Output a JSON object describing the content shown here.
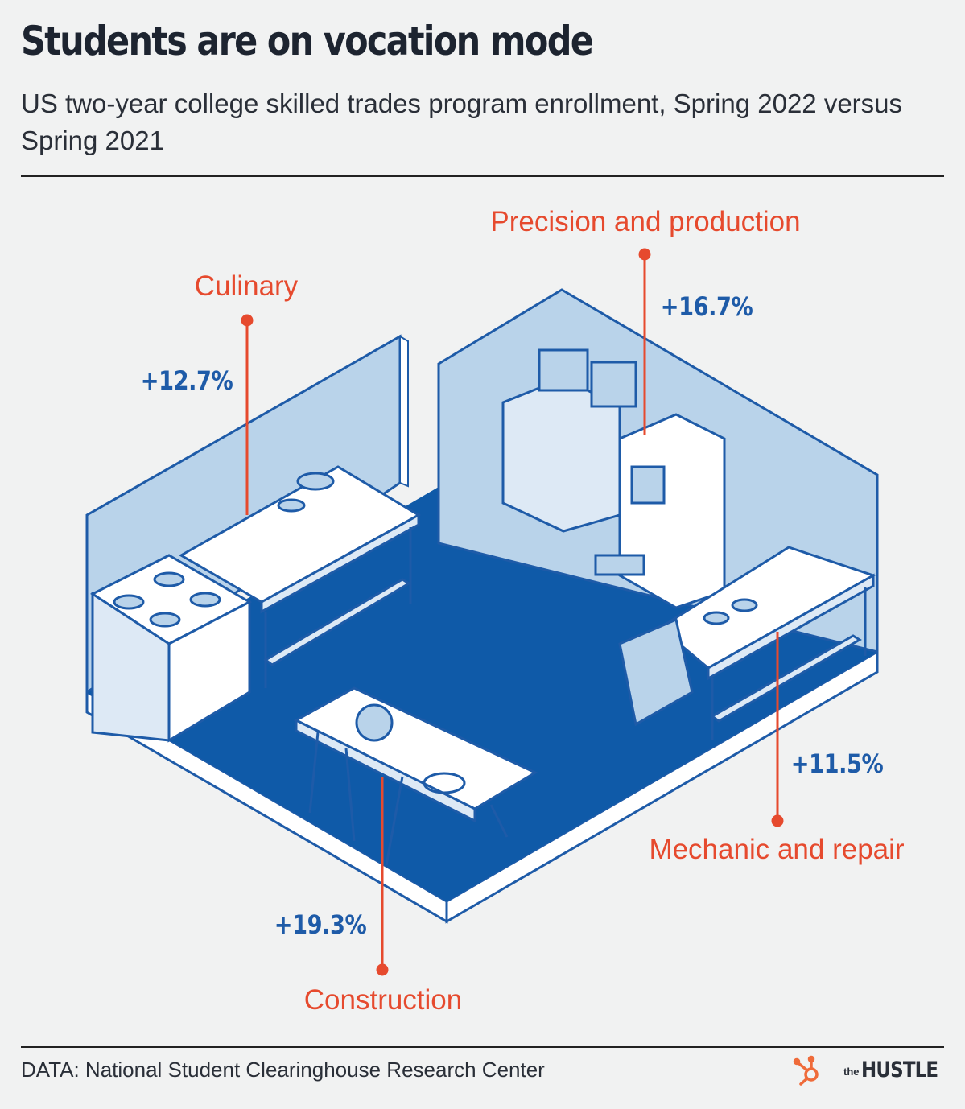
{
  "header": {
    "title": "Students are on vocation mode",
    "subtitle": "US two-year college skilled trades program enrollment, Spring 2022 versus Spring 2021"
  },
  "footer": {
    "source": "DATA: National Student Clearinghouse Research Center",
    "brand_small": "the",
    "brand_name": "HUSTLE"
  },
  "colors": {
    "accent": "#e64a2e",
    "value": "#1e5ba8",
    "floor": "#0f5aa8",
    "wall": "#b9d3ea",
    "ink": "#1d2430"
  },
  "chart_data": {
    "type": "bar",
    "categories": [
      "Culinary",
      "Precision and production",
      "Mechanic and repair",
      "Construction"
    ],
    "values": [
      12.7,
      16.7,
      11.5,
      19.3
    ],
    "value_labels": [
      "+12.7%",
      "+16.7%",
      "+11.5%",
      "+19.3%"
    ],
    "title": "Students are on vocation mode",
    "subtitle": "US two-year college skilled trades program enrollment, Spring 2022 versus Spring 2021",
    "unit": "%"
  }
}
